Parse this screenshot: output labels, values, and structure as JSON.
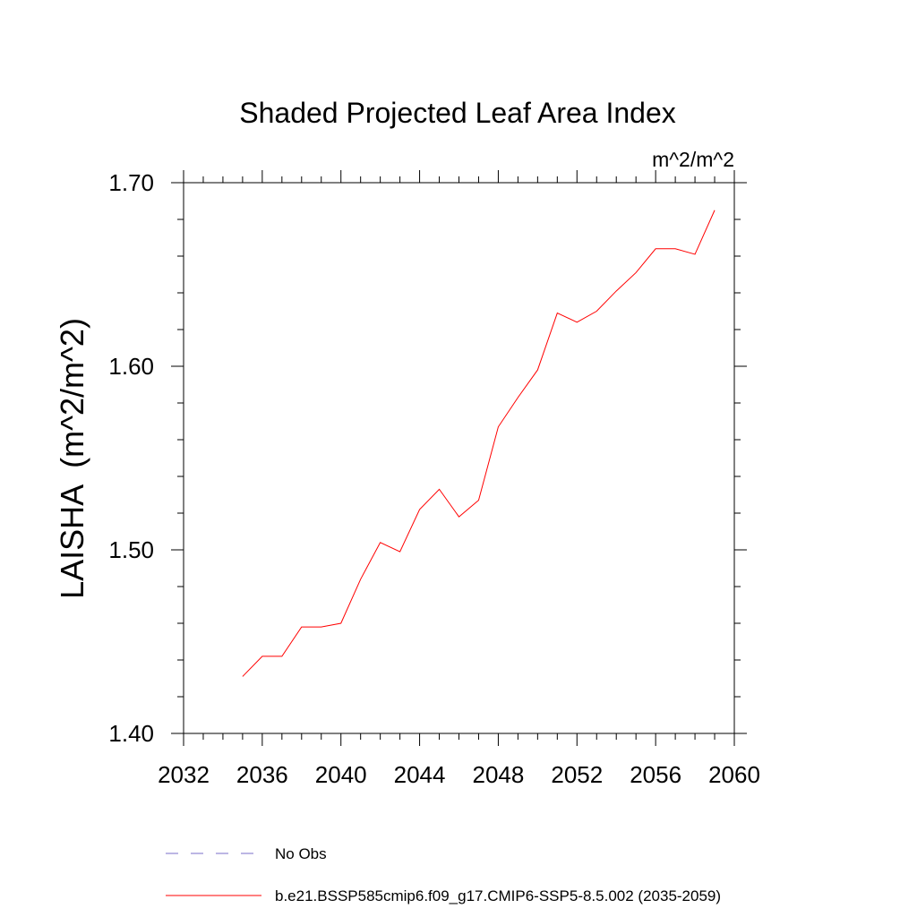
{
  "chart_data": {
    "type": "line",
    "title": "Shaded Projected Leaf Area Index",
    "units_label": "m^2/m^2",
    "ylabel": "LAISHA  (m^2/m^2)",
    "xlabel": "",
    "xlim": [
      2032,
      2060
    ],
    "ylim": [
      1.4,
      1.7
    ],
    "x_ticks": [
      2032,
      2036,
      2040,
      2044,
      2048,
      2052,
      2056,
      2060
    ],
    "x_tick_labels": [
      "2032",
      "2036",
      "2040",
      "2044",
      "2048",
      "2052",
      "2056",
      "2060"
    ],
    "x_minor_step": 1,
    "y_ticks": [
      1.4,
      1.5,
      1.6,
      1.7
    ],
    "y_tick_labels": [
      "1.40",
      "1.50",
      "1.60",
      "1.70"
    ],
    "y_minor_step": 0.02,
    "grid": false,
    "legend_position": "bottom",
    "series": [
      {
        "name": "b.e21.BSSP585cmip6.f09_g17.CMIP6-SSP5-8.5.002 (2035-2059)",
        "color": "#ff0000",
        "style": "solid",
        "x": [
          2035,
          2036,
          2037,
          2038,
          2039,
          2040,
          2041,
          2042,
          2043,
          2044,
          2045,
          2046,
          2047,
          2048,
          2049,
          2050,
          2051,
          2052,
          2053,
          2054,
          2055,
          2056,
          2057,
          2058,
          2059
        ],
        "y": [
          1.431,
          1.442,
          1.442,
          1.458,
          1.458,
          1.46,
          1.484,
          1.504,
          1.499,
          1.522,
          1.533,
          1.518,
          1.527,
          1.567,
          1.583,
          1.598,
          1.629,
          1.624,
          1.63,
          1.641,
          1.651,
          1.664,
          1.664,
          1.661,
          1.685
        ]
      }
    ],
    "legend": [
      {
        "label": "No Obs",
        "color": "#7a6cc8",
        "style": "dashed"
      },
      {
        "label": "b.e21.BSSP585cmip6.f09_g17.CMIP6-SSP5-8.5.002 (2035-2059)",
        "color": "#ff0000",
        "style": "solid"
      }
    ]
  }
}
